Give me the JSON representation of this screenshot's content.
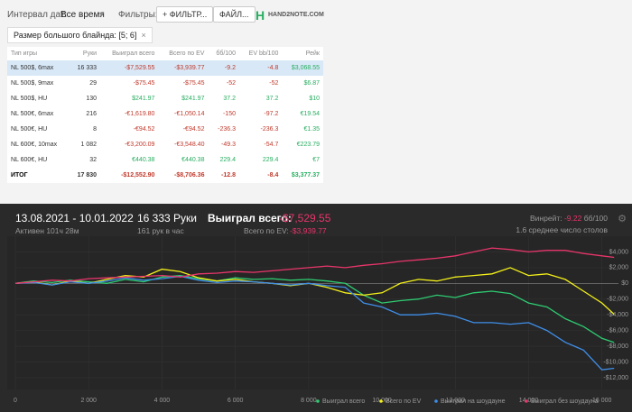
{
  "toolbar": {
    "date_label": "Интервал дат:",
    "date_value": "Все время",
    "filters_label": "Фильтры:",
    "add_filter": "+ ФИЛЬТР...",
    "file": "ФАЙЛ...",
    "logo": "HAND2NOTE.COM"
  },
  "filter_chip": {
    "text": "Размер большого блайнда: [5; 6]",
    "close": "×"
  },
  "table": {
    "headers": [
      "Тип игры",
      "Руки",
      "Выиграл всего",
      "Всего по EV",
      "бб/100",
      "EV bb/100",
      "Рейк"
    ],
    "rows": [
      [
        "NL 500$, 6max",
        "16 333",
        "-$7,529.55",
        "-$3,939.77",
        "-9.2",
        "-4.8",
        "$3,068.55"
      ],
      [
        "NL 500$, 9max",
        "29",
        "-$75.45",
        "-$75.45",
        "-52",
        "-52",
        "$6.87"
      ],
      [
        "NL 500$, HU",
        "130",
        "$241.97",
        "$241.97",
        "37.2",
        "37.2",
        "$10"
      ],
      [
        "NL 500€, 6max",
        "216",
        "-€1,619.80",
        "-€1,050.14",
        "-150",
        "-97.2",
        "€19.54"
      ],
      [
        "NL 500€, HU",
        "8",
        "-€94.52",
        "-€94.52",
        "-236.3",
        "-236.3",
        "€1.35"
      ],
      [
        "NL 600€, 10max",
        "1 082",
        "-€3,200.09",
        "-€3,548.40",
        "-49.3",
        "-54.7",
        "€223.79"
      ],
      [
        "NL 600€, HU",
        "32",
        "€440.38",
        "€440.38",
        "229.4",
        "229.4",
        "€7"
      ]
    ],
    "total": [
      "ИТОГ",
      "17 830",
      "-$12,552.90",
      "-$8,706.36",
      "-12.8",
      "-8.4",
      "$3,377.37"
    ]
  },
  "summary": {
    "dates": "13.08.2021 - 10.01.2022",
    "hands": "16 333 Руки",
    "won_label": "Выиграл всего:",
    "won_value": "-$7,529.55",
    "active": "Активен 101ч 28м",
    "per_hour": "161 рук в час",
    "ev_label": "Всего по EV:",
    "ev_value": "-$3,939.77",
    "winrate_label": "Винрейт:",
    "winrate_value": "-9.22",
    "winrate_unit": "бб/100",
    "tables": "1.6 среднее число столов",
    "logo": "HAND2NOTE.COM"
  },
  "chart_data": {
    "type": "line",
    "x": [
      0,
      500,
      1000,
      1500,
      2000,
      2500,
      3000,
      3500,
      4000,
      4500,
      5000,
      5500,
      6000,
      6500,
      7000,
      7500,
      8000,
      8500,
      9000,
      9500,
      10000,
      10500,
      11000,
      11500,
      12000,
      12500,
      13000,
      13500,
      14000,
      14500,
      15000,
      15500,
      16000,
      16333
    ],
    "series": [
      {
        "name": "Выиграл всего",
        "color": "#2ecc71",
        "values": [
          0,
          300,
          100,
          400,
          200,
          0,
          500,
          200,
          800,
          1000,
          600,
          300,
          700,
          500,
          600,
          400,
          500,
          300,
          0,
          -1500,
          -2500,
          -2200,
          -2000,
          -1500,
          -1800,
          -1200,
          -1000,
          -1300,
          -2500,
          -3000,
          -4500,
          -5500,
          -7000,
          -7529
        ]
      },
      {
        "name": "Всего по EV",
        "color": "#f4f11a",
        "values": [
          0,
          200,
          -200,
          300,
          0,
          500,
          1000,
          800,
          1800,
          1500,
          700,
          300,
          500,
          200,
          0,
          -300,
          0,
          -500,
          -1200,
          -1500,
          -1200,
          0,
          500,
          300,
          800,
          1000,
          1200,
          2000,
          1000,
          1200,
          500,
          -1000,
          -2500,
          -3939
        ]
      },
      {
        "name": "Выиграл на шоудауне",
        "color": "#3f8ee8",
        "values": [
          0,
          100,
          -200,
          200,
          0,
          300,
          700,
          400,
          600,
          900,
          400,
          100,
          300,
          200,
          0,
          -200,
          0,
          -300,
          -500,
          -2500,
          -3000,
          -4000,
          -4000,
          -3800,
          -4200,
          -5000,
          -5000,
          -5200,
          -5000,
          -6000,
          -7500,
          -8500,
          -11000,
          -10800
        ]
      },
      {
        "name": "Выиграл без шоудауна",
        "color": "#e8356b",
        "values": [
          0,
          200,
          400,
          300,
          600,
          700,
          800,
          900,
          1000,
          800,
          1200,
          1300,
          1500,
          1400,
          1600,
          1800,
          2000,
          2200,
          2000,
          2300,
          2500,
          2800,
          3000,
          3200,
          3500,
          4000,
          4500,
          4300,
          4000,
          4200,
          4200,
          3800,
          3500,
          3300
        ]
      }
    ],
    "xlim": [
      0,
      16450
    ],
    "ylim": [
      -13500,
      6000
    ],
    "xticks": [
      0,
      {
        "value": 2000,
        "label": "2 000"
      },
      {
        "value": 4000,
        "label": "4 000"
      },
      {
        "value": 6000,
        "label": "6 000"
      },
      {
        "value": 8000,
        "label": "8 000"
      },
      {
        "value": 10000,
        "label": "10 000"
      },
      {
        "value": 12000,
        "label": "12 000"
      },
      {
        "value": 14000,
        "label": "14 000"
      },
      {
        "value": 16000,
        "label": "16 000"
      }
    ],
    "yticks": [
      {
        "value": 4000,
        "label": "$4,000"
      },
      {
        "value": 2000,
        "label": "$2,000"
      },
      {
        "value": 0,
        "label": "$0"
      },
      {
        "value": -2000,
        "label": "-$2,000"
      },
      {
        "value": -4000,
        "label": "-$4,000"
      },
      {
        "value": -6000,
        "label": "-$6,000"
      },
      {
        "value": -8000,
        "label": "-$8,000"
      },
      {
        "value": -10000,
        "label": "-$10,000"
      },
      {
        "value": -12000,
        "label": "-$12,000"
      }
    ],
    "grid": true
  }
}
